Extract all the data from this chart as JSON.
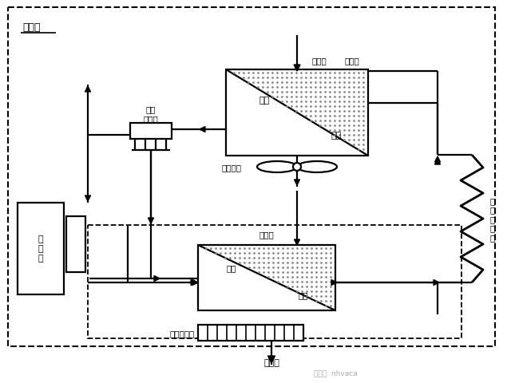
{
  "title_outdoor": "室外机",
  "label_compressor": "压\n缩\n机",
  "label_fourway": "电磁\n四通阀",
  "label_cond_fan": "强制风机",
  "label_condenser": "冷凝器",
  "label_cond_gas": "气体",
  "label_cond_liquid": "液体",
  "label_evaporator": "蒸发器",
  "label_evap_gas": "气体",
  "label_evap_liquid": "液体",
  "label_evap_fan": "贯流风机口",
  "label_indoor": "室内机",
  "label_pipe": "制\n热\n毛\n细\n管",
  "label_receiver": "储液器",
  "watermark": "微信号: nhvaca",
  "lw": 1.6,
  "lw_thin": 1.2
}
